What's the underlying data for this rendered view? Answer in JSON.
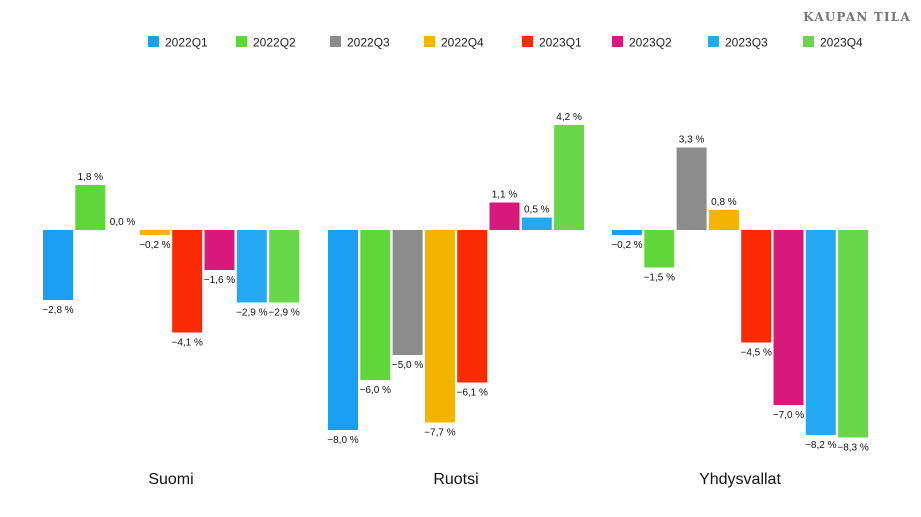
{
  "brand": "KAUPAN TILA",
  "chart_data": {
    "type": "bar",
    "categories": [
      "Suomi",
      "Ruotsi",
      "Yhdysvallat"
    ],
    "unit": "%",
    "ylim": [
      -8.3,
      4.2
    ],
    "legend_position": "top",
    "series": [
      {
        "name": "2022Q1",
        "color": "#1a9ff5",
        "values": [
          -2.8,
          -8.0,
          -0.2
        ]
      },
      {
        "name": "2022Q2",
        "color": "#5fd63a",
        "values": [
          1.8,
          -6.0,
          -1.5
        ]
      },
      {
        "name": "2022Q3",
        "color": "#8c8c8c",
        "values": [
          0.0,
          -5.0,
          3.3
        ]
      },
      {
        "name": "2022Q4",
        "color": "#f5b400",
        "values": [
          -0.2,
          -7.7,
          0.8
        ]
      },
      {
        "name": "2023Q1",
        "color": "#fa2a05",
        "values": [
          -4.1,
          -6.1,
          -4.5
        ]
      },
      {
        "name": "2023Q2",
        "color": "#d8187a",
        "values": [
          -1.6,
          1.1,
          -7.0
        ]
      },
      {
        "name": "2023Q3",
        "color": "#26a9f5",
        "values": [
          -2.9,
          0.5,
          -8.2
        ]
      },
      {
        "name": "2023Q4",
        "color": "#68d84a",
        "values": [
          -2.9,
          4.2,
          -8.3
        ]
      }
    ],
    "value_labels": [
      [
        "−2,8 %",
        "1,8 %",
        "0,0 %",
        "−0,2 %",
        "−4,1 %",
        "−1,6 %",
        "−2,9 %",
        "−2,9 %"
      ],
      [
        "−8,0 %",
        "−6,0 %",
        "−5,0 %",
        "−7,7 %",
        "−6,1 %",
        "1,1 %",
        "0,5 %",
        "4,2 %"
      ],
      [
        "−0,2 %",
        "−1,5 %",
        "3,3 %",
        "0,8 %",
        "−4,5 %",
        "−7,0 %",
        "−8,2 %",
        "−8,3 %"
      ]
    ]
  }
}
